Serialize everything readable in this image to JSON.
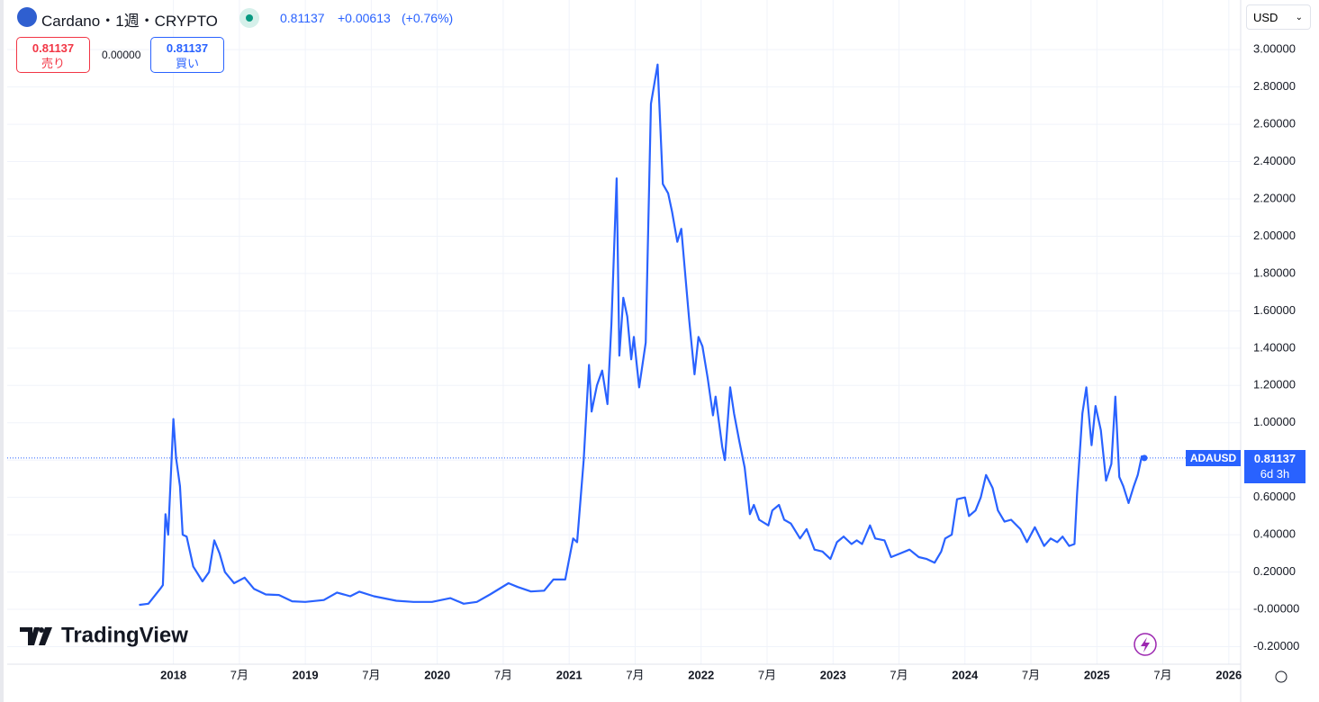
{
  "header": {
    "symbol": "Cardano・1週・CRYPTO",
    "price": "0.81137",
    "change": "+0.00613",
    "change_pct": "(+0.76%)"
  },
  "trade": {
    "sell_price": "0.81137",
    "sell_label": "売り",
    "spread": "0.00000",
    "buy_price": "0.81137",
    "buy_label": "買い"
  },
  "currency": "USD",
  "price_tag": {
    "symbol": "ADAUSD",
    "price": "0.81137",
    "countdown": "6d 3h"
  },
  "brand": "TradingView",
  "chart_data": {
    "type": "line",
    "xlim": [
      2016.74,
      2026.09
    ],
    "ylim": [
      -0.294,
      3.266
    ],
    "grid": true,
    "xticks": [
      2018,
      {
        "value": 2018.5,
        "label": "7月"
      },
      2019,
      {
        "value": 2019.5,
        "label": "7月"
      },
      2020,
      {
        "value": 2020.5,
        "label": "7月"
      },
      2021,
      {
        "value": 2021.5,
        "label": "7月"
      },
      2022,
      {
        "value": 2022.5,
        "label": "7月"
      },
      2023,
      {
        "value": 2023.5,
        "label": "7月"
      },
      2024,
      {
        "value": 2024.5,
        "label": "7月"
      },
      2025,
      {
        "value": 2025.5,
        "label": "7月"
      },
      2026
    ],
    "yticks": [
      {
        "value": 3,
        "label": "3.00000"
      },
      {
        "value": 2.8,
        "label": "2.80000"
      },
      {
        "value": 2.6,
        "label": "2.60000"
      },
      {
        "value": 2.4,
        "label": "2.40000"
      },
      {
        "value": 2.2,
        "label": "2.20000"
      },
      {
        "value": 2,
        "label": "2.00000"
      },
      {
        "value": 1.8,
        "label": "1.80000"
      },
      {
        "value": 1.6,
        "label": "1.60000"
      },
      {
        "value": 1.4,
        "label": "1.40000"
      },
      {
        "value": 1.2,
        "label": "1.20000"
      },
      {
        "value": 1,
        "label": "1.00000"
      },
      {
        "value": 0.8,
        "label": "0.80000"
      },
      {
        "value": 0.6,
        "label": "0.60000"
      },
      {
        "value": 0.4,
        "label": "0.40000"
      },
      {
        "value": 0.2,
        "label": "0.20000"
      },
      {
        "value": 0,
        "label": "-0.00000"
      },
      {
        "value": -0.2,
        "label": "-0.20000"
      }
    ],
    "series": [
      {
        "color": "#2962ff",
        "x": [
          2017.74,
          2017.81,
          2017.9,
          2017.92,
          2017.94,
          2017.96,
          2018.0,
          2018.02,
          2018.05,
          2018.07,
          2018.1,
          2018.15,
          2018.22,
          2018.27,
          2018.31,
          2018.35,
          2018.39,
          2018.46,
          2018.54,
          2018.61,
          2018.7,
          2018.8,
          2018.9,
          2019.0,
          2019.14,
          2019.24,
          2019.34,
          2019.41,
          2019.52,
          2019.69,
          2019.82,
          2019.96,
          2020.1,
          2020.2,
          2020.3,
          2020.4,
          2020.54,
          2020.61,
          2020.71,
          2020.81,
          2020.88,
          2020.97,
          2021.03,
          2021.06,
          2021.11,
          2021.15,
          2021.17,
          2021.21,
          2021.25,
          2021.29,
          2021.32,
          2021.36,
          2021.38,
          2021.41,
          2021.44,
          2021.47,
          2021.49,
          2021.53,
          2021.58,
          2021.62,
          2021.67,
          2021.71,
          2021.75,
          2021.78,
          2021.82,
          2021.85,
          2021.91,
          2021.95,
          2021.98,
          2022.01,
          2022.05,
          2022.09,
          2022.11,
          2022.16,
          2022.18,
          2022.22,
          2022.25,
          2022.29,
          2022.33,
          2022.37,
          2022.4,
          2022.44,
          2022.51,
          2022.54,
          2022.59,
          2022.63,
          2022.68,
          2022.75,
          2022.8,
          2022.86,
          2022.92,
          2022.98,
          2023.03,
          2023.08,
          2023.14,
          2023.18,
          2023.22,
          2023.28,
          2023.32,
          2023.39,
          2023.44,
          2023.51,
          2023.58,
          2023.65,
          2023.71,
          2023.77,
          2023.82,
          2023.85,
          2023.9,
          2023.94,
          2024.0,
          2024.03,
          2024.08,
          2024.12,
          2024.16,
          2024.21,
          2024.25,
          2024.3,
          2024.35,
          2024.42,
          2024.47,
          2024.53,
          2024.6,
          2024.65,
          2024.7,
          2024.74,
          2024.79,
          2024.83,
          2024.85,
          2024.89,
          2024.92,
          2024.96,
          2024.99,
          2025.03,
          2025.07,
          2025.11,
          2025.14,
          2025.17,
          2025.2,
          2025.24,
          2025.28,
          2025.31,
          2025.34,
          2025.36
        ],
        "values": [
          0.024,
          0.03,
          0.11,
          0.13,
          0.51,
          0.4,
          1.02,
          0.81,
          0.66,
          0.4,
          0.39,
          0.23,
          0.15,
          0.2,
          0.37,
          0.3,
          0.2,
          0.14,
          0.17,
          0.11,
          0.08,
          0.077,
          0.043,
          0.04,
          0.05,
          0.09,
          0.07,
          0.095,
          0.07,
          0.046,
          0.04,
          0.04,
          0.06,
          0.03,
          0.04,
          0.08,
          0.14,
          0.12,
          0.096,
          0.1,
          0.16,
          0.16,
          0.38,
          0.36,
          0.8,
          1.31,
          1.06,
          1.2,
          1.28,
          1.1,
          1.53,
          2.31,
          1.36,
          1.67,
          1.57,
          1.34,
          1.46,
          1.19,
          1.43,
          2.71,
          2.92,
          2.28,
          2.23,
          2.13,
          1.97,
          2.04,
          1.55,
          1.26,
          1.46,
          1.41,
          1.24,
          1.04,
          1.14,
          0.87,
          0.8,
          1.19,
          1.05,
          0.9,
          0.76,
          0.51,
          0.56,
          0.48,
          0.45,
          0.53,
          0.56,
          0.48,
          0.46,
          0.38,
          0.43,
          0.32,
          0.31,
          0.27,
          0.36,
          0.39,
          0.35,
          0.37,
          0.35,
          0.45,
          0.38,
          0.37,
          0.28,
          0.3,
          0.32,
          0.28,
          0.27,
          0.25,
          0.31,
          0.38,
          0.4,
          0.59,
          0.6,
          0.5,
          0.53,
          0.6,
          0.72,
          0.65,
          0.53,
          0.47,
          0.48,
          0.43,
          0.36,
          0.44,
          0.34,
          0.38,
          0.36,
          0.39,
          0.34,
          0.35,
          0.62,
          1.05,
          1.19,
          0.88,
          1.09,
          0.96,
          0.69,
          0.78,
          1.14,
          0.71,
          0.66,
          0.57,
          0.66,
          0.72,
          0.82,
          0.81137
        ]
      }
    ]
  }
}
